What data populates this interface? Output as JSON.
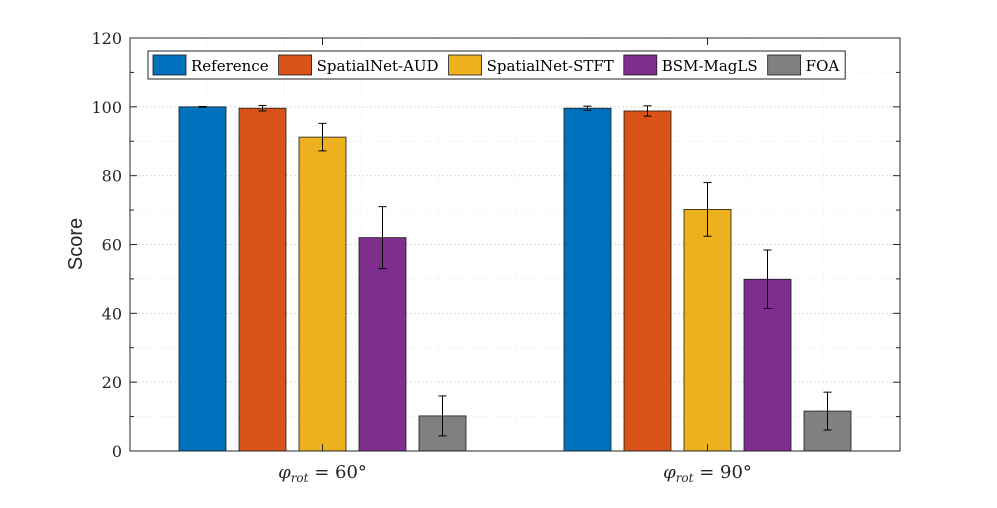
{
  "chart_data": {
    "type": "bar",
    "ylabel": "Score",
    "xlabel": "",
    "ylim": [
      0,
      120
    ],
    "yticks": [
      0,
      20,
      40,
      60,
      80,
      100,
      120
    ],
    "grid": true,
    "legend_position": "top",
    "categories": [
      {
        "symbol": "φ",
        "subscript": "rot",
        "rest": " = 60°"
      },
      {
        "symbol": "φ",
        "subscript": "rot",
        "rest": " = 90°"
      }
    ],
    "series": [
      {
        "name": "Reference",
        "color": "#0072BD",
        "values": [
          100,
          99.6
        ],
        "errors": [
          0.1,
          0.6
        ]
      },
      {
        "name": "SpatialNet-AUD",
        "color": "#D95319",
        "values": [
          99.6,
          98.8
        ],
        "errors": [
          0.8,
          1.5
        ]
      },
      {
        "name": "SpatialNet-STFT",
        "color": "#EDB120",
        "values": [
          91.2,
          70.2
        ],
        "errors": [
          4.0,
          7.8
        ]
      },
      {
        "name": "BSM-MagLS",
        "color": "#7E2F8E",
        "values": [
          62.0,
          49.9
        ],
        "errors": [
          9.0,
          8.5
        ]
      },
      {
        "name": "FOA",
        "color": "#808080",
        "values": [
          10.2,
          11.6
        ],
        "errors": [
          5.8,
          5.5
        ]
      }
    ]
  }
}
